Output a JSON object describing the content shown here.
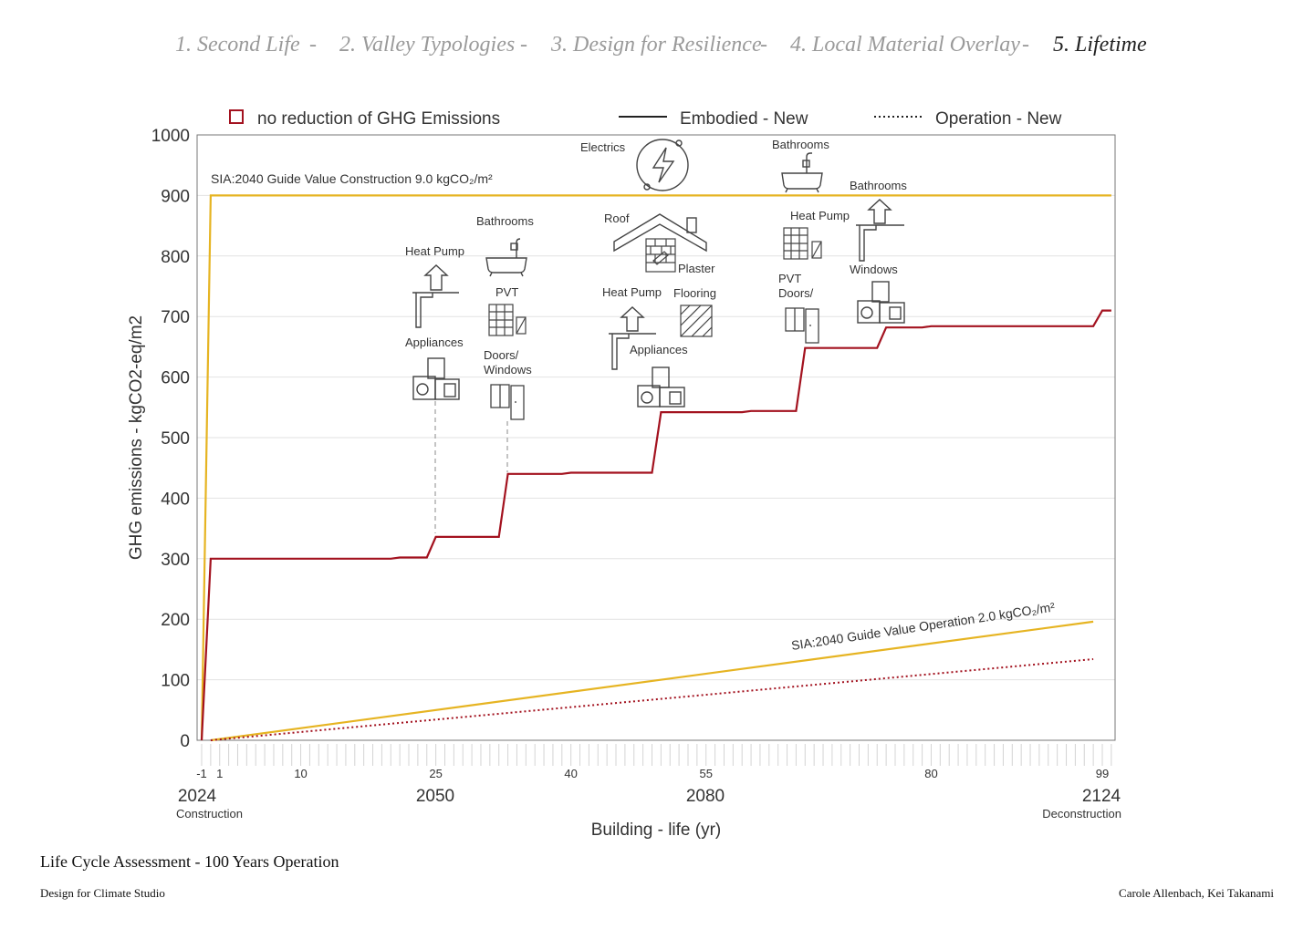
{
  "nav": {
    "items": [
      "1. Second Life",
      "2. Valley Typologies",
      "3. Design for Resilience",
      "4. Local Material Overlay",
      "5. Lifetime"
    ],
    "separator": "-",
    "active_index": 4
  },
  "colors": {
    "embodied": "#a3121f",
    "guide": "#e6b422",
    "axis": "#666666",
    "grid": "#e2e2e2",
    "text": "#333333"
  },
  "chart_data": {
    "type": "line",
    "legend": [
      {
        "label": "no reduction of GHG Emissions",
        "marker": "square-outline"
      },
      {
        "label": "Embodied - New",
        "marker": "solid-line"
      },
      {
        "label": "Operation - New",
        "marker": "dotted-line"
      }
    ],
    "ylabel": "GHG emissions - kgCO2-eq/m2",
    "xlabel": "Building - life (yr)",
    "ylim": [
      0,
      1000
    ],
    "yticks": [
      0,
      100,
      200,
      300,
      400,
      500,
      600,
      700,
      800,
      900,
      1000
    ],
    "xlim": [
      -1,
      100
    ],
    "xticks": [
      {
        "v": -1,
        "label": "-1"
      },
      {
        "v": 1,
        "label": "1"
      },
      {
        "v": 10,
        "label": "10"
      },
      {
        "v": 25,
        "label": "25"
      },
      {
        "v": 40,
        "label": "40"
      },
      {
        "v": 55,
        "label": "55"
      },
      {
        "v": 80,
        "label": "80"
      },
      {
        "v": 99,
        "label": "99"
      }
    ],
    "year_labels": [
      {
        "v": -1,
        "year": "2024",
        "caption": "Construction"
      },
      {
        "v": 25,
        "year": "2050",
        "caption": ""
      },
      {
        "v": 55,
        "year": "2080",
        "caption": ""
      },
      {
        "v": 99,
        "year": "2124",
        "caption": "Deconstruction"
      }
    ],
    "grid": true,
    "series": [
      {
        "name": "Embodied - New",
        "style": "solid",
        "color": "#a3121f",
        "points": [
          [
            -1,
            0
          ],
          [
            0,
            300
          ],
          [
            20,
            300
          ],
          [
            21,
            302
          ],
          [
            24,
            302
          ],
          [
            25,
            336
          ],
          [
            32,
            336
          ],
          [
            33,
            440
          ],
          [
            39,
            440
          ],
          [
            40,
            442
          ],
          [
            49,
            442
          ],
          [
            50,
            542
          ],
          [
            59,
            542
          ],
          [
            60,
            544
          ],
          [
            65,
            544
          ],
          [
            66,
            648
          ],
          [
            74,
            648
          ],
          [
            75,
            682
          ],
          [
            79,
            682
          ],
          [
            80,
            684
          ],
          [
            98,
            684
          ],
          [
            99,
            710
          ],
          [
            100,
            710
          ]
        ]
      },
      {
        "name": "Operation - New",
        "style": "dotted",
        "color": "#a3121f",
        "points": [
          [
            0,
            0
          ],
          [
            98,
            134
          ]
        ]
      }
    ],
    "reference_lines": [
      {
        "label": "SIA:2040 Guide Value Construction 9.0 kgCO₂/m²",
        "color": "#e6b422",
        "points": [
          [
            -1,
            0
          ],
          [
            0,
            900
          ],
          [
            100,
            900
          ]
        ]
      },
      {
        "label": "SIA:2040 Guide Value Operation 2.0 kgCO₂/m²",
        "color": "#e6b422",
        "points": [
          [
            0,
            0
          ],
          [
            98,
            196
          ]
        ]
      }
    ],
    "annotations": [
      {
        "text": "Electrics",
        "icon": "electrics-icon"
      },
      {
        "text": "Bathrooms",
        "icon": "bathtub-icon"
      },
      {
        "text": "Heat Pump",
        "icon": "heat-pump-icon"
      },
      {
        "text": "Appliances",
        "icon": "appliances-icon"
      },
      {
        "text": "Bathrooms",
        "icon": "bathtub-icon"
      },
      {
        "text": "PVT",
        "icon": "pvt-icon"
      },
      {
        "text": "Doors/",
        "icon": ""
      },
      {
        "text": "Windows",
        "icon": "doors-windows-icon"
      },
      {
        "text": "Roof",
        "icon": "roof-icon"
      },
      {
        "text": "Plaster",
        "icon": "plaster-icon"
      },
      {
        "text": "Heat Pump",
        "icon": "heat-pump-icon"
      },
      {
        "text": "Flooring",
        "icon": "flooring-icon"
      },
      {
        "text": "Appliances",
        "icon": "appliances-icon"
      },
      {
        "text": "Bathrooms",
        "icon": "bathtub-icon"
      },
      {
        "text": "Heat Pump",
        "icon": "heat-pump-icon"
      },
      {
        "text": "PVT",
        "icon": "pvt-icon"
      },
      {
        "text": "Doors/",
        "icon": ""
      },
      {
        "text": "Windows",
        "icon": "doors-windows-icon"
      },
      {
        "text": "Appliances",
        "icon": "appliances-icon"
      }
    ]
  },
  "footer": {
    "title": "Life Cycle Assessment - 100 Years Operation",
    "studio": "Design for Climate Studio",
    "authors": "Carole Allenbach, Kei Takanami"
  }
}
